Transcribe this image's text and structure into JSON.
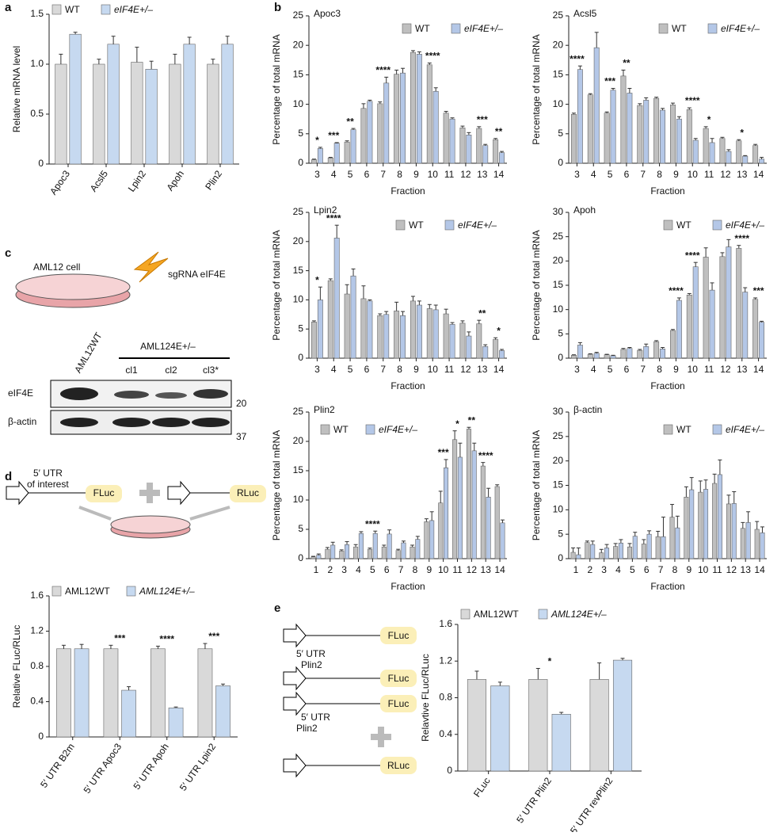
{
  "panel_labels": [
    "a",
    "b",
    "c",
    "d",
    "e"
  ],
  "diagrams": {
    "c": {
      "cell": "AML12 cell",
      "guide": "sgRNA eIF4E",
      "lane_wt": "AML12WT",
      "lane_mut": "AML124E+/–",
      "clones": [
        "cl1",
        "cl2",
        "cl3*"
      ],
      "rows": [
        "eIF4E",
        "β-actin"
      ],
      "markers": [
        "20",
        "37"
      ]
    },
    "d": {
      "utr_line1": "5′ UTR",
      "utr_line2": "of interest",
      "fluc": "FLuc",
      "rluc": "RLuc"
    },
    "e": {
      "boxes": [
        "FLuc",
        "FLuc",
        "FLuc",
        "RLuc"
      ],
      "utr_above": [
        "5′ UTR",
        "Plin2"
      ],
      "utr_below": [
        "5′ UTR",
        "Plin2"
      ]
    }
  },
  "chart_data": [
    {
      "type": "bar",
      "ylabel": "Relative mRNA level",
      "categories": [
        "Apoc3",
        "Acsl5",
        "Lpin2",
        "Apoh",
        "Plin2"
      ],
      "ylim": [
        0,
        1.5
      ],
      "yticks": [
        0,
        0.5,
        {
          "value": 1,
          "label": "1.0"
        },
        1.5
      ],
      "series": [
        {
          "name": "WT",
          "color": "#d9d9d9",
          "values": [
            1.0,
            1.0,
            1.02,
            1.0,
            1.0
          ],
          "errors": [
            0.1,
            0.05,
            0.15,
            0.1,
            0.05
          ]
        },
        {
          "name": "eIF4E+/–",
          "color": "#c6d9f0",
          "values": [
            1.3,
            1.2,
            0.95,
            1.2,
            1.2
          ],
          "errors": [
            0.02,
            0.08,
            0.08,
            0.07,
            0.08
          ]
        }
      ]
    },
    {
      "type": "bar",
      "title": "Apoc3",
      "xlabel": "Fraction",
      "ylabel": "Percentage of total mRNA",
      "categories": [
        "3",
        "4",
        "5",
        "6",
        "7",
        "8",
        "9",
        "10",
        "11",
        "12",
        "13",
        "14"
      ],
      "ylim": [
        0,
        25
      ],
      "yticks": [
        0,
        5,
        10,
        15,
        20,
        25
      ],
      "series": [
        {
          "name": "WT",
          "color": "#bfbfbf",
          "values": [
            0.6,
            0.9,
            3.6,
            9.3,
            10.1,
            15.1,
            18.8,
            16.7,
            8.5,
            6.0,
            5.9,
            4.0
          ],
          "errors": [
            0.1,
            0.1,
            0.2,
            0.8,
            0.3,
            0.7,
            0.3,
            0.3,
            0.3,
            0.3,
            0.3,
            0.2
          ]
        },
        {
          "name": "eIF4E+/–",
          "color": "#b4c7e7",
          "values": [
            2.5,
            3.4,
            5.7,
            10.5,
            13.6,
            15.3,
            18.5,
            12.2,
            7.5,
            4.8,
            3.0,
            1.8
          ],
          "errors": [
            0.2,
            0.1,
            0.2,
            0.2,
            1.0,
            0.8,
            0.4,
            0.6,
            0.2,
            0.4,
            0.2,
            0.2
          ]
        }
      ],
      "significance": [
        "*",
        "***",
        "**",
        null,
        "****",
        null,
        null,
        "****",
        null,
        null,
        "***",
        "**"
      ]
    },
    {
      "type": "bar",
      "title": "Acsl5",
      "xlabel": "Fraction",
      "ylabel": "Percentage of total mRNA",
      "categories": [
        "3",
        "4",
        "5",
        "6",
        "7",
        "8",
        "9",
        "10",
        "11",
        "12",
        "13",
        "14"
      ],
      "ylim": [
        0,
        25
      ],
      "yticks": [
        0,
        5,
        10,
        15,
        20,
        25
      ],
      "series": [
        {
          "name": "WT",
          "color": "#bfbfbf",
          "values": [
            8.3,
            11.6,
            8.5,
            14.8,
            9.8,
            11.0,
            9.9,
            9.1,
            5.9,
            4.2,
            3.8,
            3.0
          ],
          "errors": [
            0.2,
            0.2,
            0.2,
            1.0,
            0.3,
            0.2,
            0.3,
            0.3,
            0.3,
            0.2,
            0.2,
            0.2
          ]
        },
        {
          "name": "eIF4E+/–",
          "color": "#b4c7e7",
          "values": [
            15.9,
            19.6,
            12.4,
            11.9,
            10.7,
            9.0,
            7.5,
            3.9,
            3.5,
            2.0,
            1.2,
            0.7
          ],
          "errors": [
            0.6,
            2.6,
            0.3,
            0.8,
            0.4,
            0.3,
            0.4,
            0.3,
            0.7,
            0.3,
            0.1,
            0.3
          ]
        }
      ],
      "significance": [
        "****",
        null,
        "***",
        "**",
        null,
        null,
        null,
        "****",
        "*",
        null,
        "*",
        null
      ]
    },
    {
      "type": "bar",
      "title": "Lpin2",
      "xlabel": "Fraction",
      "ylabel": "Percentage of total mRNA",
      "categories": [
        "3",
        "4",
        "5",
        "6",
        "7",
        "8",
        "9",
        "10",
        "11",
        "12",
        "13",
        "14"
      ],
      "ylim": [
        0,
        25
      ],
      "yticks": [
        0,
        5,
        10,
        15,
        20,
        25
      ],
      "series": [
        {
          "name": "WT",
          "color": "#bfbfbf",
          "values": [
            6.2,
            13.3,
            11.0,
            10.2,
            7.3,
            8.1,
            9.8,
            8.5,
            7.6,
            6.0,
            5.9,
            3.2
          ],
          "errors": [
            0.2,
            0.3,
            1.6,
            2.2,
            0.3,
            1.5,
            0.8,
            0.7,
            0.8,
            0.4,
            0.6,
            0.3
          ]
        },
        {
          "name": "eIF4E+/–",
          "color": "#b4c7e7",
          "values": [
            10.0,
            20.6,
            14.1,
            9.8,
            7.5,
            7.3,
            9.1,
            8.3,
            5.8,
            3.8,
            2.0,
            1.3
          ],
          "errors": [
            2.2,
            2.2,
            1.2,
            0.2,
            0.5,
            0.7,
            0.7,
            0.8,
            0.3,
            0.7,
            0.3,
            0.2
          ]
        }
      ],
      "significance": [
        "*",
        "****",
        null,
        null,
        null,
        null,
        null,
        null,
        null,
        null,
        "**",
        "*"
      ]
    },
    {
      "type": "bar",
      "title": "Apoh",
      "xlabel": "Fraction",
      "ylabel": "Percentage of total mRNA",
      "categories": [
        "3",
        "4",
        "5",
        "6",
        "7",
        "8",
        "9",
        "10",
        "11",
        "12",
        "13",
        "14"
      ],
      "ylim": [
        0,
        30
      ],
      "yticks": [
        0,
        5,
        10,
        15,
        20,
        25,
        30
      ],
      "series": [
        {
          "name": "WT",
          "color": "#bfbfbf",
          "values": [
            0.6,
            0.8,
            0.7,
            1.8,
            1.6,
            3.4,
            5.7,
            13.0,
            20.8,
            20.9,
            22.6,
            12.1
          ],
          "errors": [
            0.1,
            0.1,
            0.1,
            0.2,
            0.2,
            0.2,
            0.2,
            0.3,
            1.9,
            0.8,
            0.6,
            0.3
          ]
        },
        {
          "name": "eIF4E+/–",
          "color": "#b4c7e7",
          "values": [
            2.7,
            1.0,
            0.5,
            2.0,
            2.4,
            1.9,
            11.9,
            18.8,
            14.0,
            22.9,
            13.6,
            7.4
          ],
          "errors": [
            0.5,
            0.2,
            0.1,
            0.2,
            0.5,
            0.3,
            0.5,
            0.9,
            1.5,
            1.5,
            0.9,
            0.2
          ]
        }
      ],
      "significance": [
        null,
        null,
        null,
        null,
        null,
        null,
        "****",
        "****",
        null,
        null,
        "****",
        "***"
      ]
    },
    {
      "type": "bar",
      "title": "Plin2",
      "xlabel": "Fraction",
      "ylabel": "Percentage of total mRNA",
      "categories": [
        "1",
        "2",
        "3",
        "4",
        "5",
        "6",
        "7",
        "8",
        "9",
        "10",
        "11",
        "12",
        "13",
        "14"
      ],
      "ylim": [
        0,
        25
      ],
      "yticks": [
        0,
        5,
        10,
        15,
        20,
        25
      ],
      "series": [
        {
          "name": "WT",
          "color": "#bfbfbf",
          "values": [
            0.3,
            1.6,
            1.3,
            2.0,
            1.6,
            2.0,
            1.4,
            2.0,
            6.3,
            9.5,
            20.3,
            22.1,
            15.8,
            12.3
          ],
          "errors": [
            0.1,
            0.3,
            0.2,
            0.4,
            0.2,
            0.3,
            0.2,
            0.3,
            0.5,
            2.0,
            1.5,
            0.3,
            0.6,
            0.3
          ]
        },
        {
          "name": "eIF4E+/–",
          "color": "#b4c7e7",
          "values": [
            0.6,
            2.3,
            2.4,
            4.3,
            4.3,
            4.2,
            2.7,
            3.3,
            6.5,
            15.5,
            17.3,
            18.4,
            10.5,
            6.1
          ],
          "errors": [
            0.2,
            0.5,
            0.5,
            0.3,
            0.4,
            0.7,
            0.3,
            0.5,
            1.5,
            1.4,
            2.4,
            1.3,
            1.5,
            0.5
          ]
        }
      ],
      "significance": [
        null,
        null,
        null,
        null,
        "****",
        null,
        null,
        null,
        null,
        "***",
        "*",
        "**",
        "****",
        null
      ]
    },
    {
      "type": "bar",
      "title": "β-actin",
      "xlabel": "Fraction",
      "ylabel": "Percentage of total mRNA",
      "categories": [
        "1",
        "2",
        "3",
        "4",
        "5",
        "6",
        "7",
        "8",
        "9",
        "10",
        "11",
        "12",
        "13",
        "14"
      ],
      "ylim": [
        0,
        30
      ],
      "yticks": [
        0,
        5,
        10,
        15,
        20,
        25,
        30
      ],
      "series": [
        {
          "name": "WT",
          "color": "#bfbfbf",
          "values": [
            1.3,
            3.3,
            1.2,
            2.5,
            2.4,
            3.0,
            4.5,
            8.5,
            12.6,
            13.6,
            15.4,
            11.2,
            6.2,
            6.0
          ],
          "errors": [
            0.9,
            0.3,
            0.7,
            0.6,
            0.7,
            0.9,
            1.1,
            2.6,
            2.1,
            2.3,
            1.9,
            1.8,
            1.2,
            1.6
          ]
        },
        {
          "name": "eIF4E+/–",
          "color": "#b4c7e7",
          "values": [
            0.8,
            2.9,
            2.2,
            3.2,
            4.6,
            5.0,
            4.5,
            6.3,
            14.1,
            14.2,
            17.2,
            11.3,
            7.4,
            5.3
          ],
          "errors": [
            1.4,
            0.7,
            0.7,
            0.7,
            0.8,
            0.7,
            4.0,
            2.4,
            2.5,
            1.9,
            3.0,
            2.4,
            2.2,
            1.2
          ]
        }
      ]
    },
    {
      "type": "bar",
      "ylabel": "Relative FLuc/RLuc",
      "categories": [
        "5′ UTR B2m",
        "5′ UTR Apoc3",
        "5′ UTR Apoh",
        "5′ UTR Lpin2"
      ],
      "ylim": [
        0,
        1.6
      ],
      "yticks": [
        0,
        0.4,
        0.8,
        1.2,
        1.6
      ],
      "series": [
        {
          "name": "AML12WT",
          "color": "#d9d9d9",
          "values": [
            1.0,
            1.0,
            1.0,
            1.0
          ],
          "errors": [
            0.04,
            0.04,
            0.03,
            0.06
          ]
        },
        {
          "name": "AML124E+/–",
          "color": "#c6d9f0",
          "values": [
            1.0,
            0.53,
            0.33,
            0.58
          ],
          "errors": [
            0.05,
            0.04,
            0.01,
            0.02
          ]
        }
      ],
      "significance": [
        null,
        "***",
        "****",
        "***"
      ]
    },
    {
      "type": "bar",
      "ylabel": "Relavtive FLuc/RLuc",
      "categories": [
        "FLuc",
        "5′ UTR Plin2",
        "5′ UTR revPlin2"
      ],
      "ylim": [
        0,
        1.6
      ],
      "yticks": [
        0,
        0.4,
        0.8,
        1.2,
        1.6
      ],
      "series": [
        {
          "name": "AML12WT",
          "color": "#d9d9d9",
          "values": [
            1.0,
            1.0,
            1.0
          ],
          "errors": [
            0.09,
            0.12,
            0.18
          ]
        },
        {
          "name": "AML124E+/–",
          "color": "#c6d9f0",
          "values": [
            0.93,
            0.62,
            1.21
          ],
          "errors": [
            0.04,
            0.02,
            0.02
          ]
        }
      ],
      "significance": [
        null,
        "*",
        null
      ]
    }
  ]
}
